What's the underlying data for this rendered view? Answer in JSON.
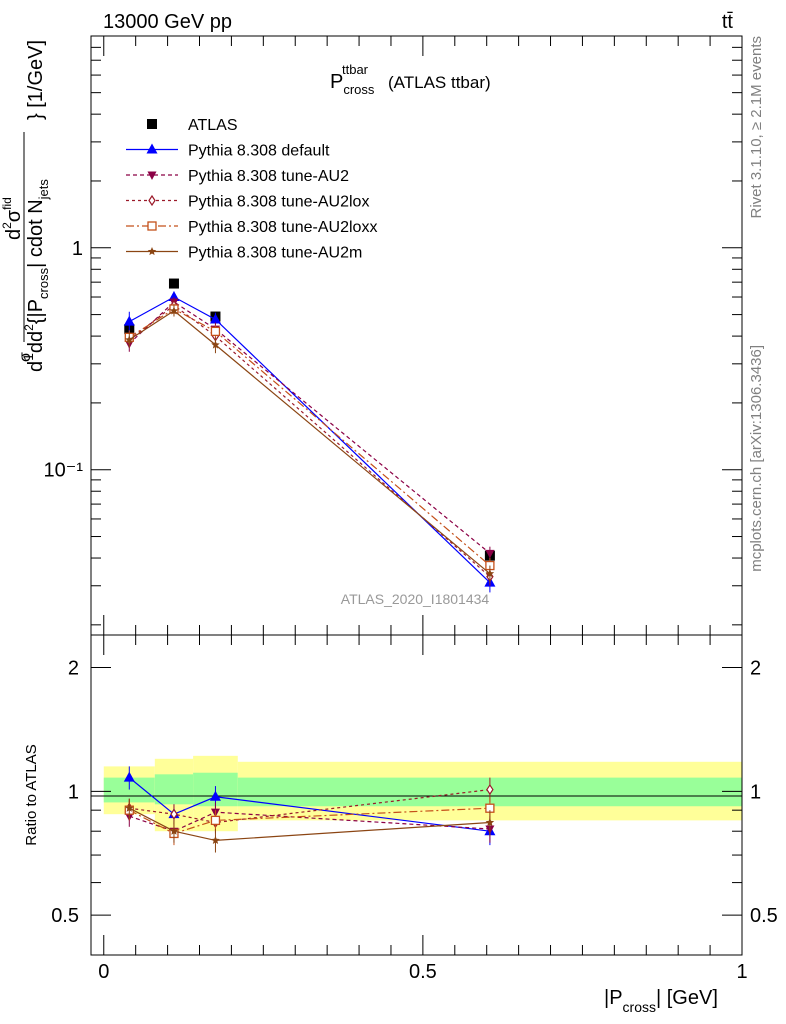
{
  "header": {
    "energy_label": "13000 GeV pp",
    "process_label": "tt̄"
  },
  "side_texts": {
    "rivet": "Rivet 3.1.10, ≥ 2.1M events",
    "mcplots": "mcplots.cern.ch [arXiv:1306.3436]"
  },
  "chart_data": [
    {
      "panel": "main",
      "type": "line",
      "title": "P cross ttbar (ATLAS ttbar)",
      "title_parts": {
        "main": "P",
        "sup": "ttbar",
        "sub": "cross",
        "rest": "(ATLAS ttbar)"
      },
      "ylabel": "d(1/σ) d²σ / d²{|P_cross| cdot N_jets} [1/GeV]",
      "ylabel_parts": {
        "unit": "} [1/GeV]",
        "pcross": "|P",
        "cross": "cross",
        "njets": "| cdot N",
        "jets": "jets"
      },
      "yscale": "log",
      "ylim": [
        0.018,
        9
      ],
      "xlim": [
        -0.02,
        1.0
      ],
      "y_tick_labels": [
        "1",
        "10⁻¹"
      ],
      "watermark": "ATLAS_2020_I1801434",
      "x": [
        0.04,
        0.11,
        0.175,
        0.605
      ],
      "series": [
        {
          "name": "ATLAS",
          "color": "#000000",
          "marker": "square",
          "dash": "none",
          "values": [
            0.43,
            0.69,
            0.49,
            0.041
          ],
          "errors": [
            0.02,
            0.025,
            0.02,
            0.002
          ]
        },
        {
          "name": "Pythia 8.308 default",
          "color": "#0000ff",
          "marker": "triangle-up",
          "dash": "none",
          "values": [
            0.465,
            0.6,
            0.475,
            0.031
          ],
          "errors": [
            0.05,
            0.035,
            0.035,
            0.003
          ]
        },
        {
          "name": "Pythia 8.308 tune-AU2",
          "color": "#8b0045",
          "marker": "triangle-down",
          "dash": "4,3",
          "values": [
            0.37,
            0.57,
            0.43,
            0.042
          ],
          "errors": [
            0.03,
            0.03,
            0.03,
            0.003
          ]
        },
        {
          "name": "Pythia 8.308 tune-AU2lox",
          "color": "#9b1a2a",
          "marker": "diamond-open",
          "dash": "3,3",
          "values": [
            0.385,
            0.55,
            0.4,
            0.033
          ],
          "errors": [
            0.03,
            0.03,
            0.03,
            0.003
          ]
        },
        {
          "name": "Pythia 8.308 tune-AU2loxx",
          "color": "#c4501a",
          "marker": "square-open",
          "dash": "8,3,2,3",
          "values": [
            0.395,
            0.53,
            0.42,
            0.037
          ],
          "errors": [
            0.03,
            0.03,
            0.03,
            0.003
          ]
        },
        {
          "name": "Pythia 8.308 tune-AU2m",
          "color": "#8b4513",
          "marker": "star",
          "dash": "none",
          "values": [
            0.385,
            0.52,
            0.365,
            0.034
          ],
          "errors": [
            0.03,
            0.03,
            0.03,
            0.003
          ]
        }
      ]
    },
    {
      "panel": "ratio",
      "type": "line",
      "ylabel": "Ratio to ATLAS",
      "xlabel": "|P cross| [GeV]",
      "xlabel_parts": {
        "pre": "|P",
        "sub": "cross",
        "post": "| [GeV]"
      },
      "xlim": [
        -0.02,
        1.0
      ],
      "ylim": [
        0.4,
        2.4
      ],
      "yscale": "log",
      "y_ticks": [
        0.5,
        1,
        2
      ],
      "y_tick_labels": [
        "0.5",
        "1",
        "2"
      ],
      "x_ticks": [
        0,
        0.5,
        1
      ],
      "x_tick_labels": [
        "0",
        "0.5",
        "1"
      ],
      "bins": [
        [
          0.0,
          0.08
        ],
        [
          0.08,
          0.14
        ],
        [
          0.14,
          0.21
        ],
        [
          0.21,
          1.0
        ]
      ],
      "band_inner": [
        [
          0.94,
          1.08
        ],
        [
          0.93,
          1.1
        ],
        [
          0.92,
          1.11
        ],
        [
          0.92,
          1.08
        ]
      ],
      "band_outer": [
        [
          0.88,
          1.15
        ],
        [
          0.8,
          1.2
        ],
        [
          0.8,
          1.22
        ],
        [
          0.85,
          1.18
        ]
      ],
      "series": [
        {
          "name": "Pythia 8.308 default",
          "color": "#0000ff",
          "marker": "triangle-up",
          "dash": "none",
          "values": [
            1.08,
            0.88,
            0.97,
            0.8
          ],
          "errors": [
            0.07,
            0.05,
            0.06,
            0.06
          ]
        },
        {
          "name": "Pythia 8.308 tune-AU2",
          "color": "#8b0045",
          "marker": "triangle-down",
          "dash": "4,3",
          "values": [
            0.87,
            0.8,
            0.89,
            0.81
          ],
          "errors": [
            0.05,
            0.05,
            0.05,
            0.06
          ]
        },
        {
          "name": "Pythia 8.308 tune-AU2lox",
          "color": "#9b1a2a",
          "marker": "diamond-open",
          "dash": "3,3",
          "values": [
            0.91,
            0.88,
            0.84,
            1.01
          ],
          "errors": [
            0.05,
            0.05,
            0.05,
            0.07
          ]
        },
        {
          "name": "Pythia 8.308 tune-AU2loxx",
          "color": "#c4501a",
          "marker": "square-open",
          "dash": "8,3,2,3",
          "values": [
            0.9,
            0.79,
            0.85,
            0.91
          ],
          "errors": [
            0.05,
            0.05,
            0.05,
            0.06
          ]
        },
        {
          "name": "Pythia 8.308 tune-AU2m",
          "color": "#8b4513",
          "marker": "star",
          "dash": "none",
          "values": [
            0.91,
            0.8,
            0.76,
            0.84
          ],
          "errors": [
            0.05,
            0.05,
            0.05,
            0.06
          ]
        }
      ]
    }
  ]
}
